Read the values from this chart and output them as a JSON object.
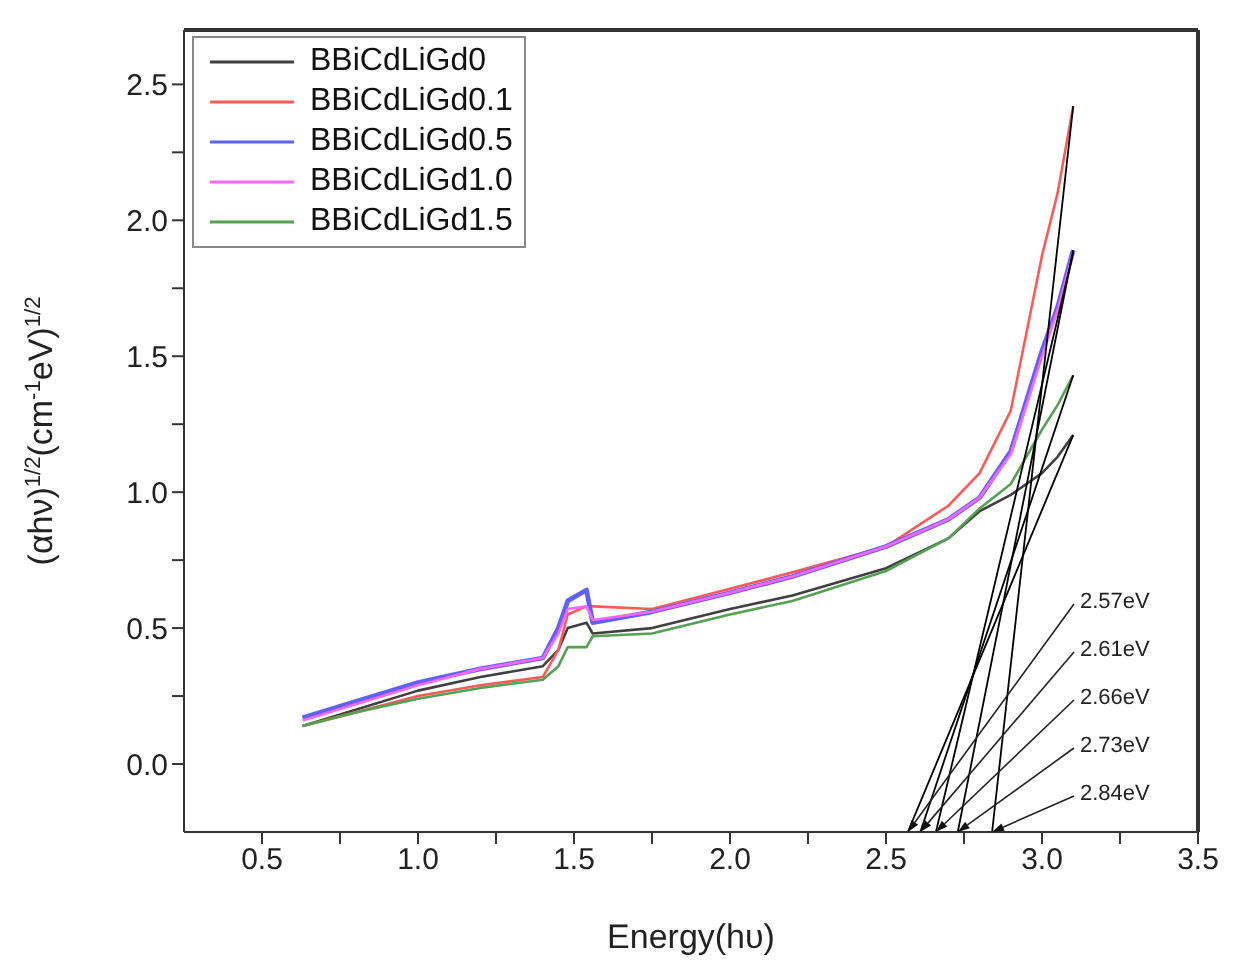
{
  "chart_data": {
    "type": "line",
    "xlabel": "Energy(hυ)",
    "ylabel": "(αhν)$^{1/2}$(cm$^{-1}$eV)$^{1/2}$",
    "x": [
      0.63,
      0.8,
      1.0,
      1.2,
      1.4,
      1.45,
      1.48,
      1.54,
      1.56,
      1.75,
      2.0,
      2.2,
      2.5,
      2.7,
      2.8,
      2.9,
      3.0,
      3.05,
      3.1
    ],
    "series": [
      {
        "name": "BBiCdLiGd0",
        "color": "#404040",
        "values": [
          0.14,
          0.2,
          0.27,
          0.32,
          0.36,
          0.42,
          0.5,
          0.52,
          0.48,
          0.5,
          0.57,
          0.62,
          0.72,
          0.83,
          0.93,
          0.99,
          1.07,
          1.13,
          1.21
        ]
      },
      {
        "name": "BBiCdLiGd0.1",
        "color": "#ff5a5a",
        "values": [
          0.14,
          0.19,
          0.25,
          0.29,
          0.32,
          0.42,
          0.55,
          0.58,
          0.58,
          0.57,
          0.645,
          0.705,
          0.8,
          0.95,
          1.07,
          1.3,
          1.87,
          2.1,
          2.42
        ]
      },
      {
        "name": "BBiCdLiGd0.5",
        "color": "#6060ff",
        "values": [
          0.17,
          0.23,
          0.3,
          0.35,
          0.39,
          0.5,
          0.6,
          0.64,
          0.52,
          0.56,
          0.63,
          0.69,
          0.8,
          0.9,
          0.98,
          1.15,
          1.52,
          1.68,
          1.89
        ]
      },
      {
        "name": "BBiCdLiGd1.0",
        "color": "#ff66ff",
        "values": [
          0.16,
          0.22,
          0.29,
          0.35,
          0.39,
          0.48,
          0.57,
          0.58,
          0.53,
          0.56,
          0.63,
          0.69,
          0.8,
          0.9,
          0.98,
          1.14,
          1.5,
          1.67,
          1.88
        ]
      },
      {
        "name": "BBiCdLiGd1.5",
        "color": "#55a055",
        "values": [
          0.14,
          0.19,
          0.24,
          0.28,
          0.31,
          0.36,
          0.43,
          0.43,
          0.47,
          0.48,
          0.55,
          0.6,
          0.71,
          0.83,
          0.94,
          1.03,
          1.23,
          1.32,
          1.43
        ]
      },
      {
        "type": "line",
        "color": "#000000",
        "x": [
          2.57,
          3.1
        ],
        "values": [
          -0.25,
          1.21
        ]
      },
      {
        "type": "line",
        "color": "#000000",
        "x": [
          2.61,
          3.1
        ],
        "values": [
          -0.25,
          1.43
        ]
      },
      {
        "type": "line",
        "color": "#000000",
        "x": [
          2.66,
          3.1
        ],
        "values": [
          -0.25,
          1.88
        ]
      },
      {
        "type": "line",
        "color": "#000000",
        "x": [
          2.73,
          3.1
        ],
        "values": [
          -0.25,
          1.89
        ]
      },
      {
        "type": "line",
        "color": "#000000",
        "x": [
          2.84,
          3.1
        ],
        "values": [
          -0.25,
          2.42
        ]
      }
    ],
    "annotations": [
      {
        "text": "2.57eV",
        "x": 2.57,
        "y": -0.25
      },
      {
        "text": "2.61eV",
        "x": 2.61,
        "y": -0.25
      },
      {
        "text": "2.66eV",
        "x": 2.66,
        "y": -0.25
      },
      {
        "text": "2.73eV",
        "x": 2.73,
        "y": -0.25
      },
      {
        "text": "2.84eV",
        "x": 2.84,
        "y": -0.25
      }
    ],
    "xlim": [
      0.25,
      3.5
    ],
    "xticks": [
      0.5,
      {
        "value": 0.75,
        "label": null
      },
      {
        "value": 1,
        "label": "1.0"
      },
      {
        "value": 1.25,
        "label": null
      },
      1.5,
      {
        "value": 1.75,
        "label": null
      },
      {
        "value": 2,
        "label": "2.0"
      },
      {
        "value": 2.25,
        "label": null
      },
      2.5,
      {
        "value": 2.75,
        "label": null
      },
      {
        "value": 3,
        "label": "3.0"
      },
      {
        "value": 3.25,
        "label": null
      },
      3.5
    ],
    "ylim": [
      -0.25,
      2.7
    ],
    "yticks": [
      {
        "value": 0,
        "label": "0.0"
      },
      {
        "value": 0.25,
        "label": null
      },
      0.5,
      {
        "value": 0.75,
        "label": null
      },
      {
        "value": 1,
        "label": "1.0"
      },
      {
        "value": 1.25,
        "label": null
      },
      1.5,
      {
        "value": 1.75,
        "label": null
      },
      {
        "value": 2,
        "label": "2.0"
      },
      {
        "value": 2.25,
        "label": null
      },
      2.5
    ],
    "legend": "top left",
    "marker": "none",
    "line_style": "solid"
  }
}
